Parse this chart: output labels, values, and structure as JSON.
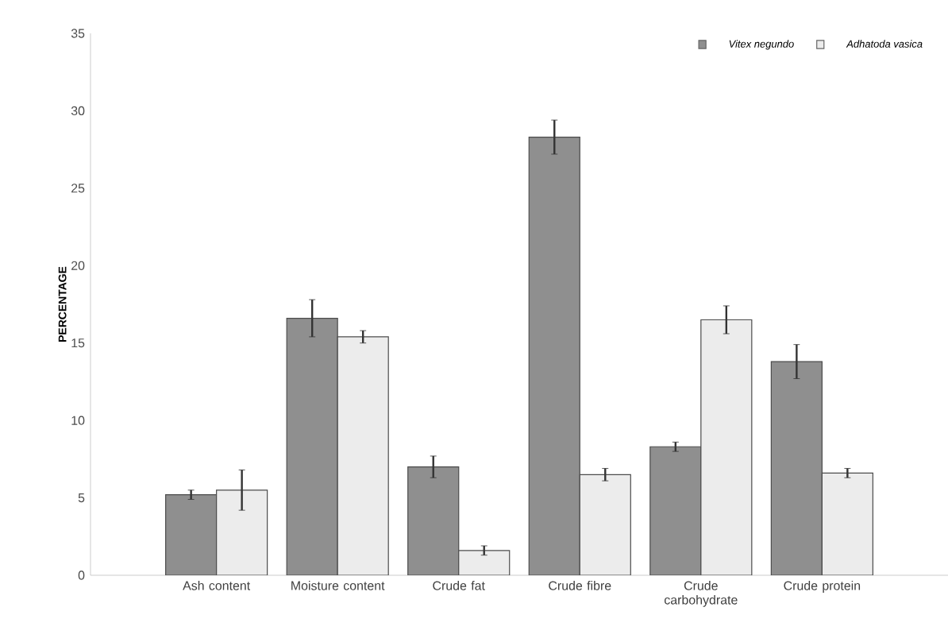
{
  "chart_data": {
    "type": "bar",
    "ylabel": "PERCENTAGE",
    "categories": [
      "Ash content",
      "Moisture content",
      "Crude fat",
      "Crude fibre",
      "Crude carbohydrate",
      "Crude protein"
    ],
    "series": [
      {
        "name": "Vitex negundo",
        "color": "#8f8f8f",
        "values": [
          5.2,
          16.6,
          7.0,
          28.3,
          8.3,
          13.8
        ],
        "errors": [
          0.3,
          1.2,
          0.7,
          1.1,
          0.3,
          1.1
        ]
      },
      {
        "name": "Adhatoda vasica",
        "color": "#ececec",
        "values": [
          5.5,
          15.4,
          1.6,
          6.5,
          16.5,
          6.6
        ],
        "errors": [
          1.3,
          0.4,
          0.3,
          0.4,
          0.9,
          0.3
        ]
      }
    ],
    "ylim": [
      0,
      35
    ],
    "yticks": [
      0,
      5,
      10,
      15,
      20,
      25,
      30,
      35
    ],
    "grid": false,
    "legend": "top right"
  }
}
